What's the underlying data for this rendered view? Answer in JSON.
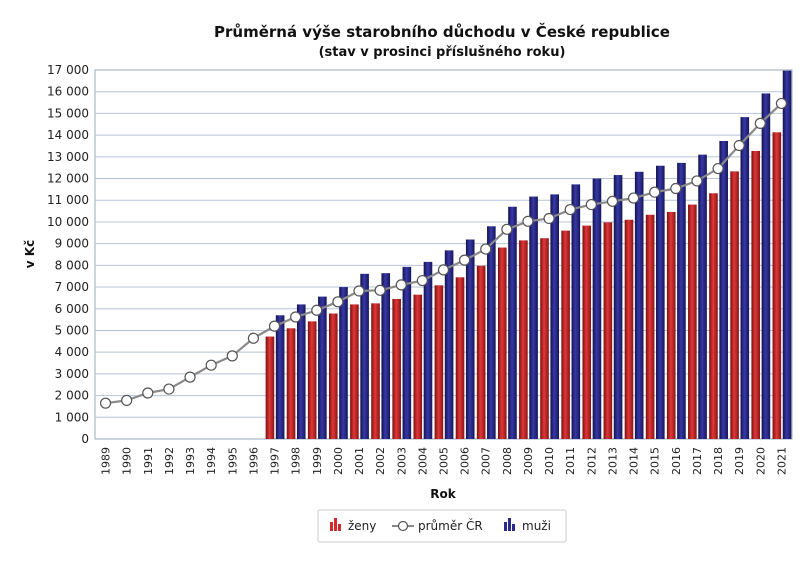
{
  "chart_data": {
    "type": "bar",
    "title": "Průměrná výše starobního důchodu v České republice",
    "subtitle": "(stav v prosinci příslušného roku)",
    "xlabel": "Rok",
    "ylabel": "v Kč",
    "ylim": [
      0,
      17000
    ],
    "ytick_step": 1000,
    "grid": true,
    "legend_position": "bottom-center",
    "categories": [
      "1989",
      "1990",
      "1991",
      "1992",
      "1993",
      "1994",
      "1995",
      "1996",
      "1997",
      "1998",
      "1999",
      "2000",
      "2001",
      "2002",
      "2003",
      "2004",
      "2005",
      "2006",
      "2007",
      "2008",
      "2009",
      "2010",
      "2011",
      "2012",
      "2013",
      "2014",
      "2015",
      "2016",
      "2017",
      "2018",
      "2019",
      "2020",
      "2021"
    ],
    "series": [
      {
        "name": "ženy",
        "kind": "bar",
        "color": "#d42a2a",
        "values": [
          null,
          null,
          null,
          null,
          null,
          null,
          null,
          null,
          4720,
          5100,
          5420,
          5780,
          6200,
          6250,
          6450,
          6650,
          7080,
          7450,
          7980,
          8820,
          9150,
          9250,
          9600,
          9830,
          9980,
          10100,
          10330,
          10460,
          10800,
          11320,
          12330,
          13270,
          14130
        ]
      },
      {
        "name": "průměr ČR",
        "kind": "line",
        "color": "#8a8a8a",
        "values": [
          1650,
          1780,
          2120,
          2300,
          2850,
          3400,
          3830,
          4640,
          5200,
          5620,
          5930,
          6320,
          6820,
          6850,
          7100,
          7300,
          7790,
          8240,
          8750,
          9660,
          10030,
          10160,
          10570,
          10800,
          10950,
          11100,
          11370,
          11540,
          11890,
          12460,
          13520,
          14540,
          15460
        ]
      },
      {
        "name": "muži",
        "kind": "bar",
        "color": "#2a2a8c",
        "values": [
          null,
          null,
          null,
          null,
          null,
          null,
          null,
          null,
          5700,
          6200,
          6560,
          7000,
          7610,
          7640,
          7930,
          8160,
          8690,
          9190,
          9800,
          10700,
          11170,
          11270,
          11730,
          12000,
          12160,
          12310,
          12590,
          12720,
          13100,
          13730,
          14830,
          15920,
          16970
        ]
      }
    ]
  }
}
